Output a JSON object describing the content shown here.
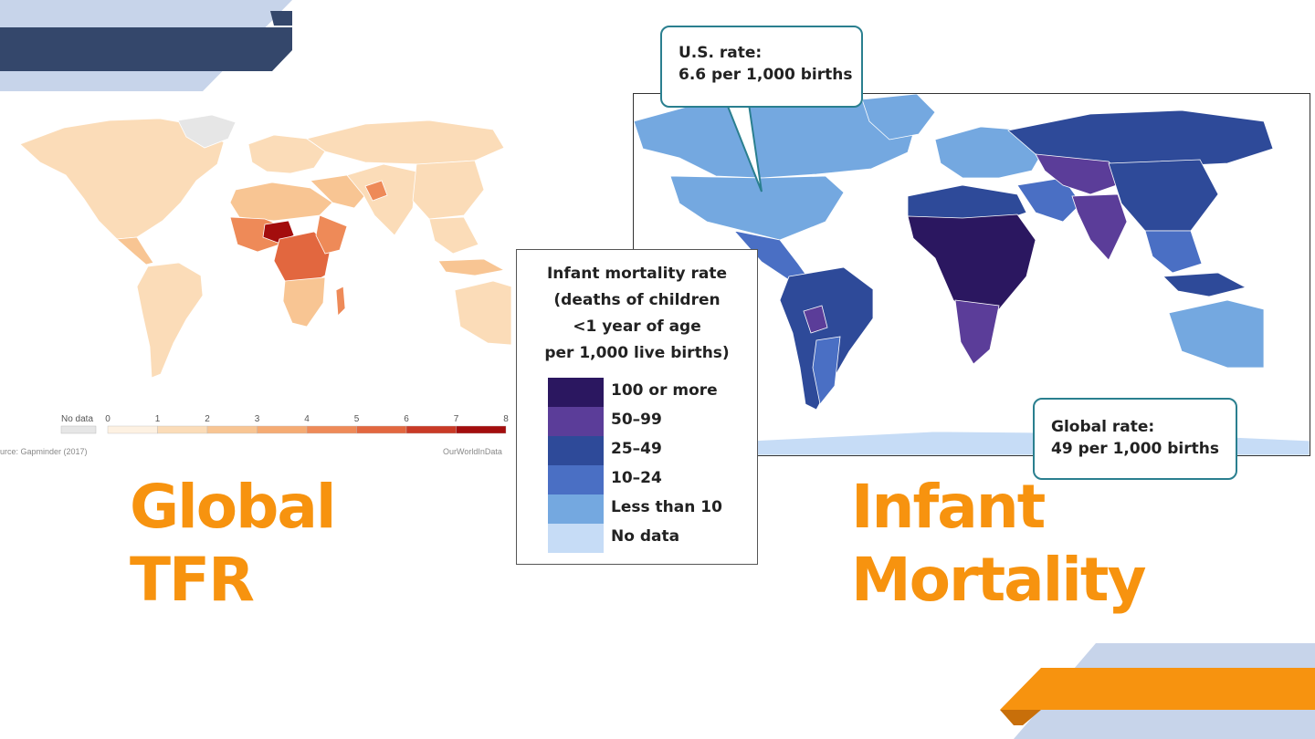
{
  "slide": {
    "left_title_line1": "Global",
    "left_title_line2": "TFR",
    "right_title_line1": "Infant",
    "right_title_line2": "Mortality",
    "title_color": "#f7930f"
  },
  "tfr_map": {
    "legend_no_data": "No data",
    "legend_ticks": [
      "0",
      "1",
      "2",
      "3",
      "4",
      "5",
      "6",
      "7",
      "8"
    ],
    "legend_colors": [
      "#fdf1e2",
      "#fbdcb8",
      "#f8c593",
      "#f5ab73",
      "#ee8a58",
      "#e2673f",
      "#c93a26",
      "#a30d0d"
    ],
    "no_data_color": "#e6e6e6",
    "source": "urce: Gapminder (2017)",
    "credit": "OurWorldInData"
  },
  "infant_mortality_map": {
    "us_callout_line1": "U.S. rate:",
    "us_callout_line2": "6.6 per 1,000 births",
    "global_callout_line1": "Global rate:",
    "global_callout_line2": "49 per 1,000 births",
    "legend_title": "Infant mortality rate\n(deaths of children\n<1 year of age\nper 1,000 live births)",
    "legend": [
      {
        "label": "100 or more",
        "color": "#2b1760"
      },
      {
        "label": "50–99",
        "color": "#5b3d99"
      },
      {
        "label": "25–49",
        "color": "#2e4a99"
      },
      {
        "label": "10–24",
        "color": "#4a6fc4"
      },
      {
        "label": "Less than 10",
        "color": "#74a8e0"
      },
      {
        "label": "No data",
        "color": "#c6dcf6"
      }
    ]
  },
  "colors": {
    "navy": "#34476b",
    "light_blue": "#c7d4ea",
    "orange": "#f7930f"
  }
}
